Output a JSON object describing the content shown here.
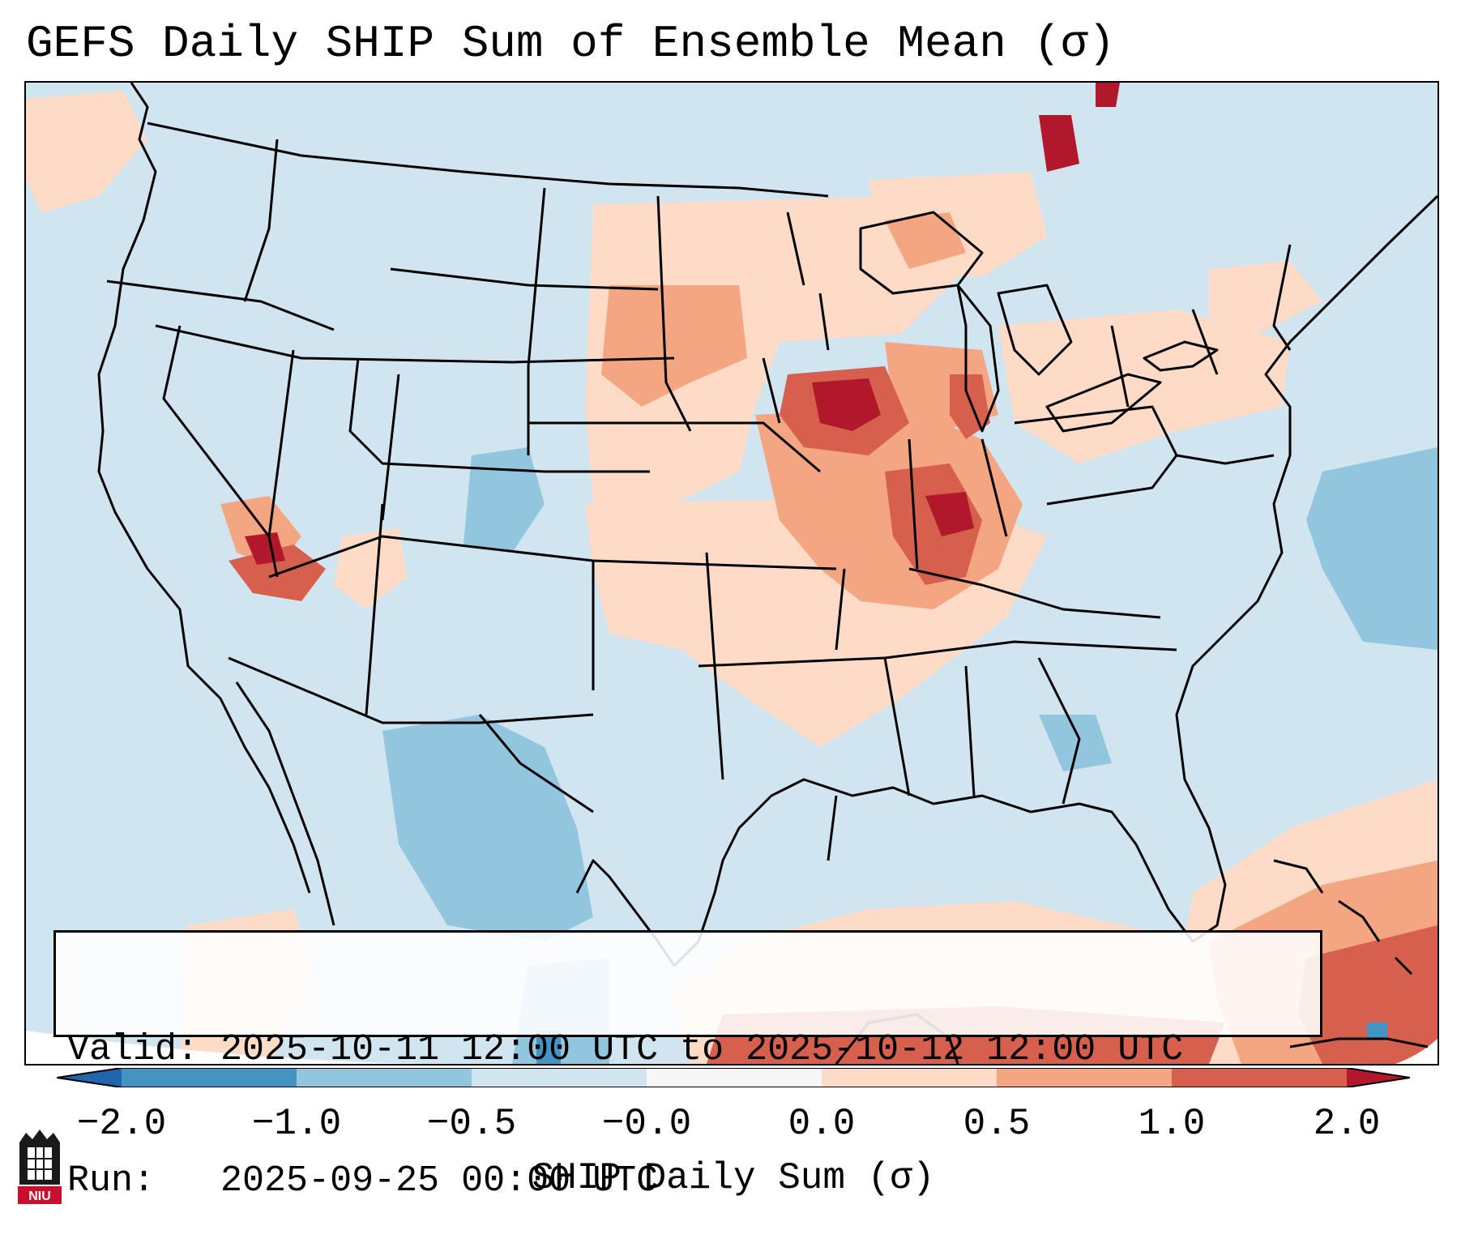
{
  "title": "GEFS Daily SHIP Sum of Ensemble Mean (σ)",
  "info": {
    "valid_label": "Valid:",
    "valid_text": "2025-10-11 12:00 UTC to 2025-10-12 12:00 UTC",
    "run_label": "Run:",
    "run_text": "2025-09-25 00:00 UTC"
  },
  "colorbar": {
    "label": "SHIP Daily Sum (σ)",
    "ticks": [
      "−2.0",
      "−1.0",
      "−0.5",
      "−0.0",
      "0.0",
      "0.5",
      "1.0",
      "2.0"
    ],
    "bins": [
      {
        "range": "< -2.0",
        "color": "#2166ac"
      },
      {
        "range": "-2.0 to -1.0",
        "color": "#4393c3"
      },
      {
        "range": "-1.0 to -0.5",
        "color": "#92c5de"
      },
      {
        "range": "-0.5 to -0.0",
        "color": "#d1e5f0"
      },
      {
        "range": "-0.0 to 0.0",
        "color": "#f7f7f7"
      },
      {
        "range": "0.0 to 0.5",
        "color": "#fddbc7"
      },
      {
        "range": "0.5 to 1.0",
        "color": "#f4a582"
      },
      {
        "range": "1.0 to 2.0",
        "color": "#d6604d"
      },
      {
        "range": "> 2.0",
        "color": "#b2182b"
      }
    ]
  },
  "logo": {
    "text": "NIU",
    "color": "#c8102e"
  }
}
